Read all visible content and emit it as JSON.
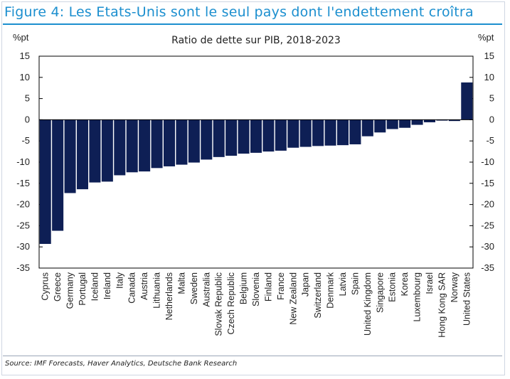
{
  "figure": {
    "title": "Figure 4: Les Etats-Unis sont le seul pays dont l'endettement croîtra",
    "source": "Source: IMF Forecasts, Haver Analytics, Deutsche Bank Research"
  },
  "colors": {
    "bar": "#0e1f55",
    "accent": "#1c8fcf"
  },
  "chart_data": {
    "type": "bar",
    "title": "Ratio de dette sur PIB, 2018-2023",
    "ylabel_left": "%pt",
    "ylabel_right": "%pt",
    "ylim": [
      -35,
      15
    ],
    "yticks": [
      15,
      10,
      5,
      0,
      -5,
      -10,
      -15,
      -20,
      -25,
      -30,
      -35
    ],
    "categories": [
      "Cyprus",
      "Greece",
      "Germany",
      "Portugal",
      "Iceland",
      "Ireland",
      "Italy",
      "Canada",
      "Austria",
      "Lithuania",
      "Netherlands",
      "Malta",
      "Sweden",
      "Australia",
      "Slovak Republic",
      "Czech Republic",
      "Belgium",
      "Slovenia",
      "Finland",
      "France",
      "New Zealand",
      "Japan",
      "Switzerland",
      "Denmark",
      "Latvia",
      "Spain",
      "United Kingdom",
      "Singapore",
      "Estonia",
      "Korea",
      "Luxembourg",
      "Israel",
      "Hong Kong SAR",
      "Norway",
      "United States"
    ],
    "values": [
      -29.3,
      -26.2,
      -17.3,
      -16.4,
      -14.8,
      -14.6,
      -13.1,
      -12.4,
      -12.2,
      -11.4,
      -11.0,
      -10.6,
      -10.1,
      -9.4,
      -8.8,
      -8.5,
      -8.0,
      -7.8,
      -7.5,
      -7.3,
      -6.6,
      -6.4,
      -6.2,
      -6.1,
      -6.0,
      -5.8,
      -3.9,
      -3.0,
      -2.2,
      -1.9,
      -1.2,
      -0.6,
      -0.2,
      -0.3,
      8.8
    ]
  }
}
